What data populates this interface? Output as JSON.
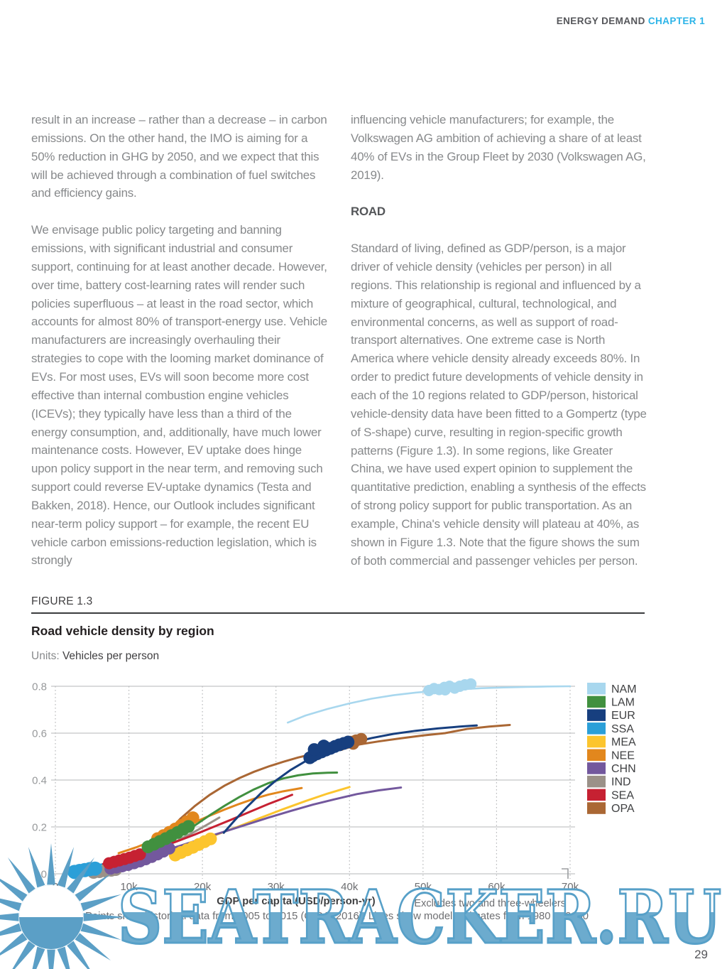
{
  "header": {
    "section": "ENERGY DEMAND",
    "chapter": "CHAPTER 1"
  },
  "page_number": "29",
  "columns": {
    "left": {
      "p1": "result in an increase – rather than a decrease – in carbon emissions. On the other hand, the IMO is aiming for a 50% reduction in GHG by 2050, and we expect that this will be achieved through a combination of fuel switches and efficiency gains.",
      "p2": "We envisage public policy targeting and banning emissions, with significant industrial and consumer support, continuing for at least another decade. However, over time, battery cost-learning rates will render such policies superfluous – at least in the road sector, which accounts for almost 80% of transport-energy use. Vehicle manufacturers are increasingly overhauling their strategies to cope with the looming market dominance of EVs. For most uses, EVs will soon become more cost effective than internal combustion engine vehicles (ICEVs); they typically have less than a third of the energy consumption, and, additionally, have much lower maintenance costs. However, EV uptake does hinge upon policy support in the near term, and removing such support could reverse EV-uptake dynamics (Testa and Bakken, 2018). Hence, our Outlook includes significant near-term policy support – for example, the recent EU vehicle carbon emissions-reduction legislation, which is strongly"
    },
    "right": {
      "p1": "influencing vehicle manufacturers; for example, the Volkswagen AG ambition of achieving a share of at least 40% of EVs in the Group Fleet by 2030 (Volkswagen AG, 2019).",
      "heading": "ROAD",
      "p2": "Standard of living, defined as GDP/person, is a major driver of vehicle density (vehicles per person) in all regions. This relationship is regional and influenced by a mixture of geographical, cultural, technological, and environmental concerns, as well as support of road-transport alternatives. One extreme case is North America where vehicle density already exceeds 80%. In order to predict future developments of vehicle density in each of the 10 regions related to GDP/person, historical vehicle-density data have been fitted to a Gompertz (type of S-shape) curve, resulting in region-specific growth patterns (Figure 1.3). In some regions, like Greater China, we have used expert opinion to supplement the quantitative prediction, enabling a synthesis of the effects of strong policy support for public transportation. As an example, China's vehicle density will plateau at 40%, as shown in Figure 1.3. Note that the figure shows the sum of both commercial and passenger vehicles per person."
    }
  },
  "figure": {
    "label": "FIGURE 1.3",
    "title": "Road vehicle density by region",
    "units_label": "Units:",
    "units_value": "Vehicles per person",
    "xlabel": "GDP per capita (USD/person-yr)",
    "note": "Excludes two and three-wheelers",
    "caption": "Points show historical data from 2005 to 2015 (OICA, 2016). Lines show model estimates from 1980 to 2050"
  },
  "watermark": {
    "text": "SEATRACKER.RU",
    "fill": "#6cabce",
    "outline": "#57a0c8",
    "sun": "#5b9fc6"
  },
  "chart_data": {
    "type": "line+scatter",
    "title": "Road vehicle density by region",
    "ylabel": "Vehicles per person",
    "xlabel": "GDP per capita (USD/person-yr)",
    "xlim_usd": [
      0,
      70000
    ],
    "ylim": [
      0,
      0.8
    ],
    "x_tick_values": [
      0,
      10,
      20,
      30,
      40,
      50,
      60,
      70
    ],
    "x_tick_labels": [
      "0",
      "10k",
      "20k",
      "30k",
      "40k",
      "50k",
      "60k",
      "70k"
    ],
    "y_tick_values": [
      0,
      0.2,
      0.4,
      0.6,
      0.8
    ],
    "y_tick_labels": [
      "0",
      "0.2",
      "0.4",
      "0.6",
      "0.8"
    ],
    "grid": true,
    "legend_position": "right",
    "x_units": "thousand USD/person-yr",
    "series": [
      {
        "name": "NAM",
        "color": "#a8d7ee",
        "r": 8,
        "line": [
          [
            31.6,
            0.645
          ],
          [
            34,
            0.675
          ],
          [
            37,
            0.703
          ],
          [
            40,
            0.727
          ],
          [
            43,
            0.747
          ],
          [
            46,
            0.762
          ],
          [
            49,
            0.773
          ],
          [
            52,
            0.781
          ],
          [
            55,
            0.787
          ],
          [
            58,
            0.792
          ],
          [
            61,
            0.795
          ],
          [
            64,
            0.797
          ],
          [
            67,
            0.799
          ],
          [
            70,
            0.8
          ]
        ],
        "points": [
          [
            50.8,
            0.782
          ],
          [
            51.5,
            0.79
          ],
          [
            52.2,
            0.786
          ],
          [
            52.9,
            0.795
          ],
          [
            53.6,
            0.8
          ],
          [
            54.3,
            0.792
          ],
          [
            55,
            0.8
          ],
          [
            55.7,
            0.806
          ],
          [
            56.5,
            0.81
          ],
          [
            53,
            0.785
          ]
        ]
      },
      {
        "name": "LAM",
        "color": "#41903f",
        "r": 9,
        "line": [
          [
            11.5,
            0.062
          ],
          [
            13,
            0.088
          ],
          [
            15,
            0.125
          ],
          [
            17,
            0.165
          ],
          [
            19,
            0.207
          ],
          [
            21,
            0.25
          ],
          [
            23,
            0.29
          ],
          [
            25,
            0.327
          ],
          [
            27,
            0.36
          ],
          [
            29,
            0.387
          ],
          [
            31,
            0.407
          ],
          [
            33,
            0.42
          ],
          [
            35,
            0.428
          ],
          [
            37,
            0.431
          ],
          [
            38.3,
            0.432
          ]
        ],
        "points": [
          [
            12.6,
            0.115
          ],
          [
            13.4,
            0.126
          ],
          [
            14.2,
            0.138
          ],
          [
            15,
            0.15
          ],
          [
            15.8,
            0.163
          ],
          [
            16.6,
            0.176
          ],
          [
            17.4,
            0.19
          ],
          [
            18.1,
            0.202
          ]
        ]
      },
      {
        "name": "EUR",
        "color": "#173f7f",
        "r": 9,
        "line": [
          [
            22.9,
            0.175
          ],
          [
            24.5,
            0.232
          ],
          [
            26,
            0.283
          ],
          [
            28,
            0.345
          ],
          [
            30,
            0.398
          ],
          [
            32,
            0.443
          ],
          [
            34,
            0.48
          ],
          [
            36,
            0.511
          ],
          [
            38,
            0.536
          ],
          [
            40,
            0.556
          ],
          [
            43,
            0.579
          ],
          [
            46,
            0.597
          ],
          [
            49,
            0.61
          ],
          [
            52,
            0.62
          ],
          [
            55,
            0.628
          ],
          [
            57.3,
            0.633
          ]
        ],
        "points": [
          [
            34.6,
            0.495
          ],
          [
            35,
            0.503
          ],
          [
            35.6,
            0.512
          ],
          [
            36.2,
            0.52
          ],
          [
            36.8,
            0.528
          ],
          [
            37.4,
            0.535
          ],
          [
            38,
            0.543
          ],
          [
            38.6,
            0.55
          ],
          [
            39.2,
            0.556
          ],
          [
            39.8,
            0.562
          ],
          [
            35.2,
            0.53
          ],
          [
            36.5,
            0.545
          ]
        ]
      },
      {
        "name": "SSA",
        "color": "#2b9fd8",
        "r": 10,
        "line": [
          [
            1.6,
            0.01
          ],
          [
            3.5,
            0.022
          ],
          [
            5.5,
            0.035
          ],
          [
            7.5,
            0.048
          ],
          [
            9.5,
            0.06
          ],
          [
            11,
            0.07
          ]
        ],
        "points": [
          [
            2.6,
            0.008
          ],
          [
            3.3,
            0.012
          ],
          [
            4,
            0.016
          ],
          [
            4.7,
            0.02
          ],
          [
            5.4,
            0.022
          ]
        ]
      },
      {
        "name": "MEA",
        "color": "#fcc52e",
        "r": 9,
        "line": [
          [
            4,
            0.018
          ],
          [
            7,
            0.036
          ],
          [
            10,
            0.057
          ],
          [
            13,
            0.08
          ],
          [
            16,
            0.106
          ],
          [
            19,
            0.135
          ],
          [
            22,
            0.168
          ],
          [
            25,
            0.203
          ],
          [
            28,
            0.24
          ],
          [
            31,
            0.276
          ],
          [
            34,
            0.31
          ],
          [
            37,
            0.342
          ],
          [
            40,
            0.37
          ]
        ],
        "points": [
          [
            16.3,
            0.08
          ],
          [
            17.1,
            0.091
          ],
          [
            17.9,
            0.102
          ],
          [
            18.7,
            0.113
          ],
          [
            19.5,
            0.125
          ],
          [
            20.3,
            0.137
          ],
          [
            21.1,
            0.149
          ]
        ]
      },
      {
        "name": "NEE",
        "color": "#e2871d",
        "r": 9,
        "line": [
          [
            8.6,
            0.088
          ],
          [
            11,
            0.113
          ],
          [
            13,
            0.138
          ],
          [
            15,
            0.165
          ],
          [
            17,
            0.193
          ],
          [
            19,
            0.221
          ],
          [
            21,
            0.248
          ],
          [
            23,
            0.274
          ],
          [
            25,
            0.298
          ],
          [
            27,
            0.32
          ],
          [
            29,
            0.338
          ],
          [
            31,
            0.352
          ],
          [
            33.5,
            0.366
          ]
        ],
        "points": [
          [
            13.9,
            0.15
          ],
          [
            14.7,
            0.163
          ],
          [
            15.5,
            0.177
          ],
          [
            16.3,
            0.191
          ],
          [
            17.1,
            0.206
          ],
          [
            17.9,
            0.222
          ],
          [
            18.7,
            0.239
          ]
        ]
      },
      {
        "name": "CHN",
        "color": "#73589d",
        "r": 8.5,
        "line": [
          [
            5,
            0.018
          ],
          [
            8,
            0.04
          ],
          [
            11,
            0.065
          ],
          [
            14,
            0.092
          ],
          [
            17,
            0.12
          ],
          [
            20,
            0.15
          ],
          [
            23,
            0.18
          ],
          [
            26,
            0.21
          ],
          [
            29,
            0.24
          ],
          [
            32,
            0.268
          ],
          [
            35,
            0.295
          ],
          [
            38,
            0.318
          ],
          [
            41,
            0.34
          ],
          [
            44,
            0.356
          ],
          [
            47,
            0.368
          ]
        ],
        "points": [
          [
            7.5,
            0.022
          ],
          [
            8.3,
            0.027
          ],
          [
            9.1,
            0.032
          ],
          [
            9.9,
            0.038
          ],
          [
            10.7,
            0.045
          ],
          [
            11.5,
            0.053
          ],
          [
            12.3,
            0.062
          ],
          [
            13.1,
            0.072
          ],
          [
            13.9,
            0.083
          ],
          [
            14.7,
            0.095
          ],
          [
            15.5,
            0.108
          ]
        ]
      },
      {
        "name": "IND",
        "color": "#9b9188",
        "r": 9,
        "line": [
          [
            2,
            0.006
          ],
          [
            4.5,
            0.018
          ],
          [
            7,
            0.035
          ],
          [
            9.5,
            0.056
          ],
          [
            12,
            0.082
          ],
          [
            14.5,
            0.112
          ],
          [
            16.5,
            0.14
          ],
          [
            18.5,
            0.172
          ],
          [
            20.5,
            0.207
          ],
          [
            22.3,
            0.24
          ]
        ],
        "points": [
          [
            5.2,
            0.006
          ],
          [
            6,
            0.009
          ],
          [
            6.8,
            0.012
          ],
          [
            7.6,
            0.015
          ],
          [
            8.2,
            0.018
          ]
        ]
      },
      {
        "name": "SEA",
        "color": "#c62132",
        "r": 8.5,
        "line": [
          [
            6.5,
            0.042
          ],
          [
            9,
            0.062
          ],
          [
            11.5,
            0.085
          ],
          [
            14,
            0.11
          ],
          [
            16.5,
            0.138
          ],
          [
            19,
            0.168
          ],
          [
            21.5,
            0.2
          ],
          [
            24,
            0.232
          ],
          [
            26.5,
            0.265
          ],
          [
            29,
            0.298
          ],
          [
            31,
            0.322
          ],
          [
            32.2,
            0.337
          ]
        ],
        "points": [
          [
            7.3,
            0.045
          ],
          [
            8,
            0.051
          ],
          [
            8.7,
            0.057
          ],
          [
            9.4,
            0.063
          ],
          [
            10.1,
            0.069
          ],
          [
            10.8,
            0.076
          ],
          [
            11.5,
            0.083
          ]
        ]
      },
      {
        "name": "OPA",
        "color": "#aa6734",
        "r": 8.5,
        "line": [
          [
            13.8,
            0.125
          ],
          [
            15.5,
            0.185
          ],
          [
            17,
            0.235
          ],
          [
            19,
            0.29
          ],
          [
            21,
            0.337
          ],
          [
            23,
            0.376
          ],
          [
            25,
            0.408
          ],
          [
            27,
            0.435
          ],
          [
            29,
            0.458
          ],
          [
            31,
            0.478
          ],
          [
            33,
            0.496
          ],
          [
            35,
            0.511
          ],
          [
            37,
            0.525
          ],
          [
            39,
            0.538
          ],
          [
            41,
            0.55
          ],
          [
            44,
            0.565
          ],
          [
            47,
            0.578
          ],
          [
            50,
            0.59
          ],
          [
            53,
            0.6
          ],
          [
            56,
            0.618
          ],
          [
            59,
            0.628
          ],
          [
            61.8,
            0.635
          ]
        ],
        "points": [
          [
            38.8,
            0.55
          ],
          [
            39.5,
            0.557
          ],
          [
            40.2,
            0.563
          ],
          [
            40.9,
            0.569
          ],
          [
            41.6,
            0.575
          ],
          [
            40.5,
            0.555
          ]
        ]
      }
    ]
  }
}
